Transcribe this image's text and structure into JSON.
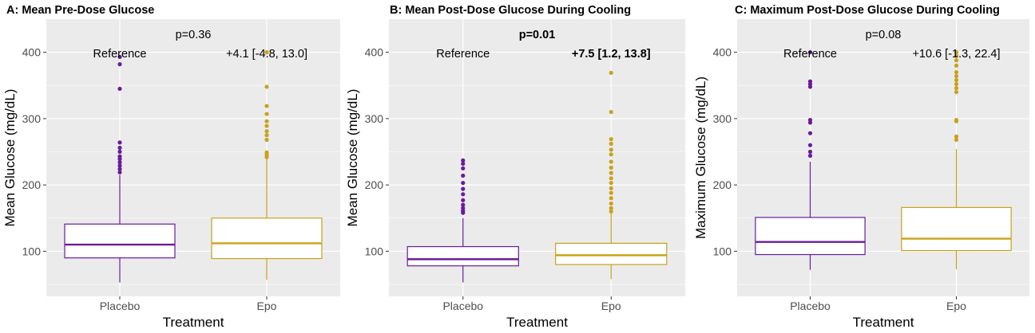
{
  "chart_data": [
    {
      "type": "box",
      "title": "A: Mean Pre-Dose Glucose",
      "xlabel": "Treatment",
      "ylabel": "Mean Glucose (mg/dL)",
      "ylim": [
        32,
        450
      ],
      "yticks": [
        100,
        200,
        300,
        400
      ],
      "categories": [
        "Placebo",
        "Epo"
      ],
      "p_label": "p=0.36",
      "p_bold": false,
      "reference_label": "Reference",
      "effect_label": "+4.1 [-4.8, 13.0]",
      "effect_bold": false,
      "series": [
        {
          "name": "Placebo",
          "color": "#6a1b9a",
          "min": 53,
          "q1": 90,
          "median": 110,
          "q3": 141,
          "whisker_high": 215,
          "outliers": [
            393,
            382,
            345,
            264,
            256,
            250,
            243,
            239,
            234,
            229,
            224,
            219
          ]
        },
        {
          "name": "Epo",
          "color": "#c9a21a",
          "min": 57,
          "q1": 89,
          "median": 112,
          "q3": 150,
          "whisker_high": 242,
          "outliers": [
            400,
            348,
            319,
            307,
            296,
            289,
            281,
            275,
            268,
            249,
            245,
            242
          ]
        }
      ]
    },
    {
      "type": "box",
      "title": "B: Mean Post-Dose Glucose During Cooling",
      "xlabel": "Treatment",
      "ylabel": "Mean Glucose (mg/dL)",
      "ylim": [
        32,
        450
      ],
      "yticks": [
        100,
        200,
        300,
        400
      ],
      "categories": [
        "Placebo",
        "Epo"
      ],
      "p_label": "p=0.01",
      "p_bold": true,
      "reference_label": "Reference",
      "effect_label": "+7.5 [1.2, 13.8]",
      "effect_bold": true,
      "series": [
        {
          "name": "Placebo",
          "color": "#6a1b9a",
          "min": 53,
          "q1": 78,
          "median": 88,
          "q3": 107,
          "whisker_high": 150,
          "outliers": [
            237,
            232,
            225,
            214,
            203,
            194,
            186,
            177,
            170,
            165,
            161,
            158
          ]
        },
        {
          "name": "Epo",
          "color": "#c9a21a",
          "min": 58,
          "q1": 80,
          "median": 94,
          "q3": 112,
          "whisker_high": 158,
          "outliers": [
            369,
            310,
            269,
            262,
            253,
            246,
            235,
            226,
            218,
            210,
            203,
            195,
            188,
            180,
            172,
            165,
            160
          ]
        }
      ]
    },
    {
      "type": "box",
      "title": "C: Maximum Post-Dose Glucose During Cooling",
      "xlabel": "Treatment",
      "ylabel": "Maximum Glucose (mg/dL)",
      "ylim": [
        32,
        450
      ],
      "yticks": [
        100,
        200,
        300,
        400
      ],
      "categories": [
        "Placebo",
        "Epo"
      ],
      "p_label": "p=0.08",
      "p_bold": false,
      "reference_label": "Reference",
      "effect_label": "+10.6 [-1.3, 22.4]",
      "effect_bold": false,
      "series": [
        {
          "name": "Placebo",
          "color": "#6a1b9a",
          "min": 72,
          "q1": 95,
          "median": 114,
          "q3": 151,
          "whisker_high": 235,
          "outliers": [
            400,
            356,
            352,
            348,
            298,
            294,
            278,
            260,
            250,
            244
          ]
        },
        {
          "name": "Epo",
          "color": "#c9a21a",
          "min": 73,
          "q1": 101,
          "median": 119,
          "q3": 166,
          "whisker_high": 254,
          "outliers": [
            400,
            395,
            388,
            380,
            370,
            364,
            358,
            352,
            346,
            340,
            298,
            296,
            273,
            268
          ]
        }
      ]
    }
  ]
}
